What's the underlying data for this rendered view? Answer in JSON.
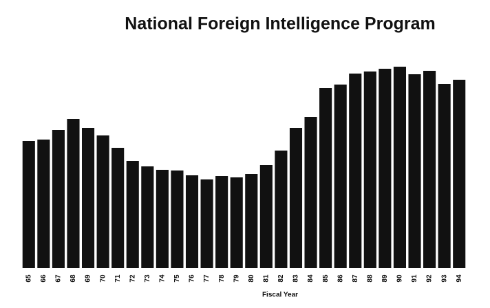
{
  "chart_data": {
    "type": "bar",
    "title": "National Foreign Intelligence Program",
    "x_label": "Fiscal Year",
    "categories": [
      "65",
      "66",
      "67",
      "68",
      "69",
      "70",
      "71",
      "72",
      "73",
      "74",
      "75",
      "76",
      "77",
      "78",
      "79",
      "80",
      "81",
      "82",
      "83",
      "84",
      "85",
      "86",
      "87",
      "88",
      "89",
      "90",
      "91",
      "92",
      "93",
      "94"
    ],
    "values": [
      185,
      187,
      201,
      217,
      204,
      193,
      175,
      156,
      148,
      143,
      142,
      135,
      129,
      134,
      132,
      137,
      150,
      171,
      204,
      220,
      262,
      267,
      283,
      286,
      290,
      293,
      282,
      287,
      268,
      274
    ],
    "color": "#111111"
  }
}
